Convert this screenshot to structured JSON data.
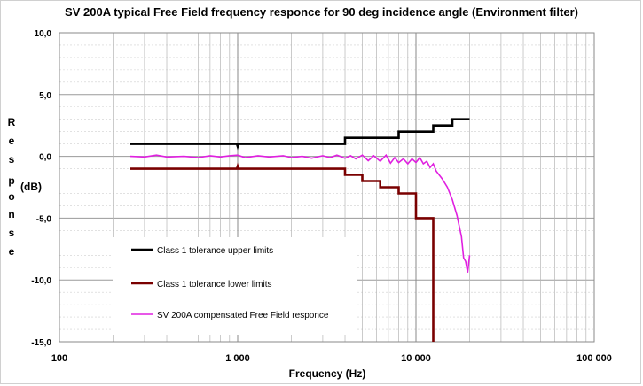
{
  "chart_data": {
    "type": "line",
    "title": "SV 200A typical Free Field frequency responce for 90 deg incidence angle (Environment filter)",
    "xlabel": "Frequency (Hz)",
    "ylabel_letters": [
      "R",
      "e",
      "s",
      "p",
      "o",
      "n",
      "s",
      "e"
    ],
    "ylabel_unit": "(dB)",
    "x_scale": "log",
    "xlim": [
      100,
      100000
    ],
    "ylim": [
      -15,
      10
    ],
    "grid": true,
    "legend_placement": "bottom-left",
    "x_tick_labels": [
      "100",
      "1 000",
      "10 000",
      "100 000"
    ],
    "x_tick_values": [
      100,
      1000,
      10000,
      100000
    ],
    "y_tick_labels": [
      "10,0",
      "5,0",
      "0,0",
      "-5,0",
      "-10,0",
      "-15,0"
    ],
    "y_tick_values": [
      10,
      5,
      0,
      -5,
      -10,
      -15
    ],
    "series": [
      {
        "name": "Class 1 tolerance upper limits",
        "color": "#000000",
        "points": [
          [
            250,
            1
          ],
          [
            990,
            1
          ],
          [
            1000,
            0.8
          ],
          [
            1010,
            1
          ],
          [
            4000,
            1
          ],
          [
            4000,
            1.5
          ],
          [
            8000,
            1.5
          ],
          [
            8000,
            2
          ],
          [
            12500,
            2
          ],
          [
            12500,
            2.5
          ],
          [
            16000,
            2.5
          ],
          [
            16000,
            3
          ],
          [
            20000,
            3
          ]
        ]
      },
      {
        "name": "Class 1 tolerance lower limits",
        "color": "#7a0000",
        "points": [
          [
            250,
            -1
          ],
          [
            990,
            -1
          ],
          [
            1000,
            -0.8
          ],
          [
            1010,
            -1
          ],
          [
            4000,
            -1
          ],
          [
            4000,
            -1.5
          ],
          [
            5000,
            -1.5
          ],
          [
            5000,
            -2
          ],
          [
            6300,
            -2
          ],
          [
            6300,
            -2.5
          ],
          [
            8000,
            -2.5
          ],
          [
            8000,
            -3
          ],
          [
            10000,
            -3
          ],
          [
            10000,
            -5
          ],
          [
            12500,
            -5
          ],
          [
            12500,
            -15
          ]
        ]
      },
      {
        "name": "SV 200A compensated Free Field responce",
        "color": "#e020e0",
        "points": [
          [
            250,
            0
          ],
          [
            300,
            -0.05
          ],
          [
            350,
            0.1
          ],
          [
            400,
            -0.05
          ],
          [
            500,
            0
          ],
          [
            600,
            -0.1
          ],
          [
            700,
            0.05
          ],
          [
            800,
            -0.05
          ],
          [
            900,
            0.05
          ],
          [
            1000,
            0.1
          ],
          [
            1100,
            -0.1
          ],
          [
            1300,
            0.05
          ],
          [
            1500,
            -0.05
          ],
          [
            1800,
            0.05
          ],
          [
            2000,
            -0.1
          ],
          [
            2300,
            0
          ],
          [
            2600,
            -0.15
          ],
          [
            3000,
            0.05
          ],
          [
            3300,
            -0.1
          ],
          [
            3600,
            0.1
          ],
          [
            4000,
            -0.15
          ],
          [
            4300,
            0.05
          ],
          [
            4600,
            -0.2
          ],
          [
            5000,
            0.1
          ],
          [
            5400,
            -0.35
          ],
          [
            5800,
            0.05
          ],
          [
            6300,
            -0.4
          ],
          [
            6800,
            0.1
          ],
          [
            7200,
            -0.55
          ],
          [
            7600,
            -0.1
          ],
          [
            8000,
            -0.5
          ],
          [
            8500,
            -0.2
          ],
          [
            9000,
            -0.6
          ],
          [
            9500,
            -0.2
          ],
          [
            10000,
            -0.5
          ],
          [
            10500,
            -0.1
          ],
          [
            11000,
            -0.6
          ],
          [
            11500,
            -0.4
          ],
          [
            12000,
            -0.9
          ],
          [
            12500,
            -0.6
          ],
          [
            13000,
            -1.2
          ],
          [
            14000,
            -1.8
          ],
          [
            15000,
            -2.5
          ],
          [
            16000,
            -3.5
          ],
          [
            17000,
            -4.8
          ],
          [
            18000,
            -6.5
          ],
          [
            18500,
            -8.2
          ],
          [
            19000,
            -8.5
          ],
          [
            19500,
            -9.4
          ],
          [
            20000,
            -8
          ]
        ]
      }
    ]
  }
}
